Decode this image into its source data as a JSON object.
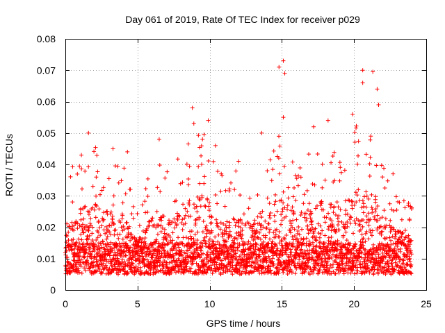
{
  "chart_data": {
    "type": "scatter",
    "title": "Day 061 of 2019, Rate Of TEC Index for receiver p029",
    "xlabel": "GPS time / hours",
    "ylabel": "ROTI / TECUs",
    "xlim": [
      0,
      25
    ],
    "ylim": [
      0,
      0.08
    ],
    "x_ticks": [
      0,
      5,
      10,
      15,
      20,
      25
    ],
    "x_tick_labels": [
      "0",
      "5",
      "10",
      "15",
      "20",
      "25"
    ],
    "y_ticks": [
      0,
      0.01,
      0.02,
      0.03,
      0.04,
      0.05,
      0.06,
      0.07,
      0.08
    ],
    "y_tick_labels": [
      "0",
      "0.01",
      "0.02",
      "0.03",
      "0.04",
      "0.05",
      "0.06",
      "0.07",
      "0.08"
    ],
    "grid": true,
    "marker": "plus",
    "color": "#ff0000",
    "notable_points": [
      {
        "x": 14.8,
        "y": 0.071
      },
      {
        "x": 15.1,
        "y": 0.073
      },
      {
        "x": 15.2,
        "y": 0.069
      },
      {
        "x": 20.6,
        "y": 0.07
      },
      {
        "x": 20.6,
        "y": 0.066
      },
      {
        "x": 21.3,
        "y": 0.0695
      },
      {
        "x": 21.6,
        "y": 0.064
      },
      {
        "x": 21.7,
        "y": 0.059
      },
      {
        "x": 8.8,
        "y": 0.058
      },
      {
        "x": 8.9,
        "y": 0.053
      },
      {
        "x": 9.9,
        "y": 0.054
      },
      {
        "x": 9.5,
        "y": 0.048
      },
      {
        "x": 15.1,
        "y": 0.055
      },
      {
        "x": 19.9,
        "y": 0.056
      },
      {
        "x": 1.6,
        "y": 0.05
      },
      {
        "x": 6.5,
        "y": 0.048
      },
      {
        "x": 13.6,
        "y": 0.05
      },
      {
        "x": 17.2,
        "y": 0.052
      },
      {
        "x": 18.2,
        "y": 0.054
      },
      {
        "x": 3.3,
        "y": 0.045
      },
      {
        "x": 4.3,
        "y": 0.044
      },
      {
        "x": 10.4,
        "y": 0.046
      },
      {
        "x": 12.0,
        "y": 0.041
      },
      {
        "x": 22.7,
        "y": 0.037
      }
    ],
    "series": [
      {
        "x_range": [
          0,
          24
        ],
        "baseline_band": [
          0.005,
          0.015
        ],
        "sample_interval_hours": 0.0075,
        "envelope_x": [
          0,
          1,
          2,
          3,
          4,
          5,
          6,
          7,
          8,
          9,
          10,
          11,
          12,
          13,
          14,
          15,
          16,
          17,
          18,
          19,
          20,
          21,
          22,
          23,
          24
        ],
        "envelope_y": [
          0.036,
          0.044,
          0.046,
          0.042,
          0.04,
          0.026,
          0.04,
          0.04,
          0.044,
          0.052,
          0.048,
          0.036,
          0.04,
          0.036,
          0.046,
          0.05,
          0.04,
          0.044,
          0.048,
          0.042,
          0.052,
          0.054,
          0.042,
          0.032,
          0.028
        ]
      }
    ]
  }
}
